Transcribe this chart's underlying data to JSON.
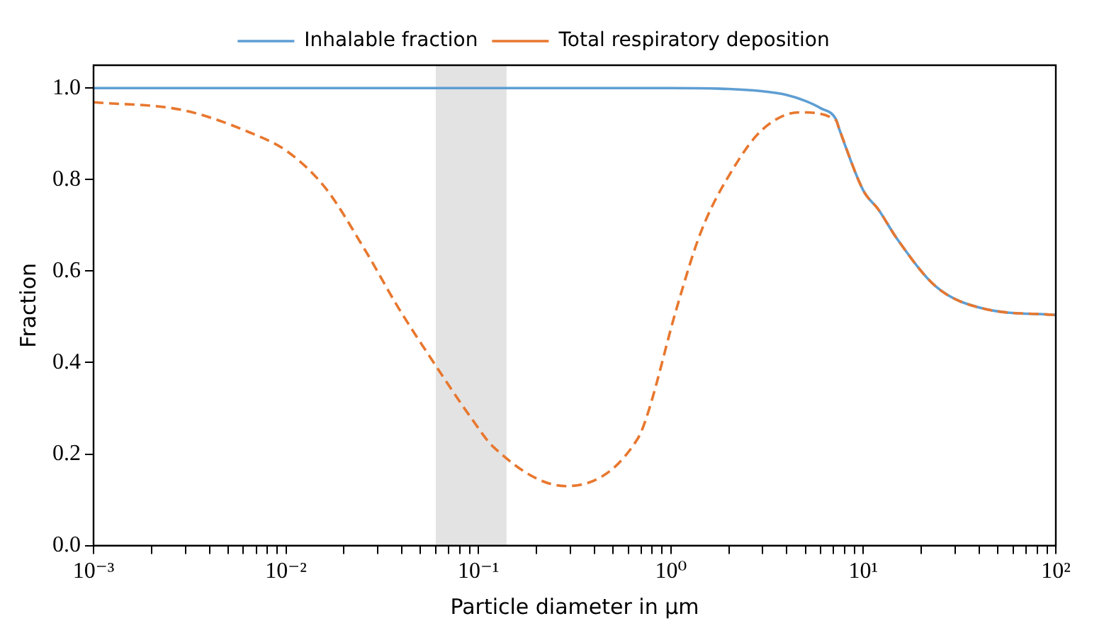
{
  "chart_data": {
    "type": "line",
    "xlabel": "Particle diameter in µm",
    "ylabel": "Fraction",
    "log": "x",
    "legend": "top",
    "marker": "none",
    "xlim": [
      0.001,
      100
    ],
    "ylim": [
      0,
      1.05
    ],
    "xticks": [
      {
        "value": 0.001,
        "label": "10⁻³"
      },
      {
        "value": 0.002,
        "label": null
      },
      {
        "value": 0.003,
        "label": null
      },
      {
        "value": 0.004,
        "label": null
      },
      {
        "value": 0.005,
        "label": null
      },
      {
        "value": 0.006,
        "label": null
      },
      {
        "value": 0.007,
        "label": null
      },
      {
        "value": 0.008,
        "label": null
      },
      {
        "value": 0.009,
        "label": null
      },
      {
        "value": 0.01,
        "label": "10⁻²"
      },
      {
        "value": 0.02,
        "label": null
      },
      {
        "value": 0.03,
        "label": null
      },
      {
        "value": 0.04,
        "label": null
      },
      {
        "value": 0.05,
        "label": null
      },
      {
        "value": 0.06,
        "label": null
      },
      {
        "value": 0.07,
        "label": null
      },
      {
        "value": 0.08,
        "label": null
      },
      {
        "value": 0.09,
        "label": null
      },
      {
        "value": 0.1,
        "label": "10⁻¹"
      },
      {
        "value": 0.2,
        "label": null
      },
      {
        "value": 0.3,
        "label": null
      },
      {
        "value": 0.4,
        "label": null
      },
      {
        "value": 0.5,
        "label": null
      },
      {
        "value": 0.6,
        "label": null
      },
      {
        "value": 0.7,
        "label": null
      },
      {
        "value": 0.8,
        "label": null
      },
      {
        "value": 0.9,
        "label": null
      },
      {
        "value": 1,
        "label": "10⁰"
      },
      {
        "value": 2,
        "label": null
      },
      {
        "value": 3,
        "label": null
      },
      {
        "value": 4,
        "label": null
      },
      {
        "value": 5,
        "label": null
      },
      {
        "value": 6,
        "label": null
      },
      {
        "value": 7,
        "label": null
      },
      {
        "value": 8,
        "label": null
      },
      {
        "value": 9,
        "label": null
      },
      {
        "value": 10,
        "label": "10¹"
      },
      {
        "value": 20,
        "label": null
      },
      {
        "value": 30,
        "label": null
      },
      {
        "value": 40,
        "label": null
      },
      {
        "value": 50,
        "label": null
      },
      {
        "value": 60,
        "label": null
      },
      {
        "value": 70,
        "label": null
      },
      {
        "value": 80,
        "label": null
      },
      {
        "value": 90,
        "label": null
      },
      {
        "value": 100,
        "label": "10²"
      }
    ],
    "yticks": [
      {
        "value": 0,
        "label": "0.0"
      },
      {
        "value": 0.2,
        "label": "0.2"
      },
      {
        "value": 0.4,
        "label": "0.4"
      },
      {
        "value": 0.6,
        "label": "0.6"
      },
      {
        "value": 0.8,
        "label": "0.8"
      },
      {
        "value": 1,
        "label": "1.0"
      }
    ],
    "bands": [
      {
        "axis": "x",
        "from": 0.06,
        "to": 0.14,
        "color": "#e3e3e3"
      }
    ],
    "series": [
      {
        "name": "Inhalable fraction",
        "color": "#5e9ed3",
        "line_style": "solid",
        "x": [
          0.001,
          0.01,
          0.1,
          1,
          2,
          3,
          4,
          5,
          6,
          7.2,
          7.5,
          10,
          12,
          15,
          24,
          42,
          100
        ],
        "values": [
          1,
          1,
          1,
          1,
          0.998,
          0.993,
          0.985,
          0.972,
          0.956,
          0.932,
          0.91,
          0.776,
          0.734,
          0.67,
          0.565,
          0.518,
          0.504
        ]
      },
      {
        "name": "Total respiratory deposition",
        "color": "#e8772e",
        "line_style": "dashed",
        "x": [
          0.001,
          0.0029,
          0.0064,
          0.0102,
          0.016,
          0.0255,
          0.0386,
          0.0575,
          0.0913,
          0.12,
          0.285,
          0.675,
          0.76,
          1.07,
          1.44,
          2.15,
          3,
          4.66,
          7.2,
          7.5,
          10,
          12,
          15,
          24,
          42,
          100
        ],
        "values": [
          0.969,
          0.952,
          0.904,
          0.861,
          0.782,
          0.649,
          0.518,
          0.405,
          0.28,
          0.215,
          0.13,
          0.235,
          0.29,
          0.518,
          0.688,
          0.83,
          0.91,
          0.947,
          0.93,
          0.91,
          0.776,
          0.734,
          0.67,
          0.565,
          0.518,
          0.504
        ]
      }
    ]
  }
}
